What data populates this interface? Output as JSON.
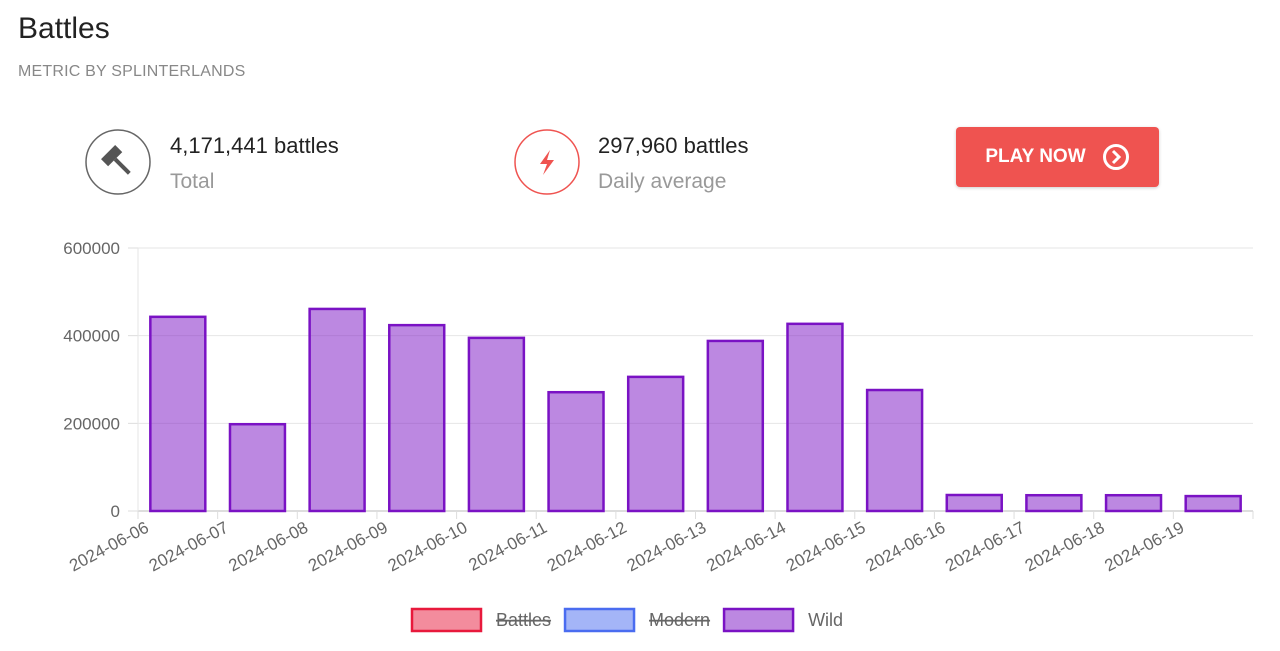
{
  "header": {
    "title": "Battles",
    "subtitle": "METRIC BY SPLINTERLANDS",
    "stats": [
      {
        "value": "4,171,441 battles",
        "label": "Total"
      },
      {
        "value": "297,960 battles",
        "label": "Daily average"
      }
    ],
    "button": "PLAY NOW"
  },
  "chart_data": {
    "type": "bar",
    "categories": [
      "2024-06-06",
      "2024-06-07",
      "2024-06-08",
      "2024-06-09",
      "2024-06-10",
      "2024-06-11",
      "2024-06-12",
      "2024-06-13",
      "2024-06-14",
      "2024-06-15",
      "2024-06-16",
      "2024-06-17",
      "2024-06-18",
      "2024-06-19"
    ],
    "series": [
      {
        "name": "Battles",
        "color": "#e8193c",
        "hidden": true
      },
      {
        "name": "Modern",
        "color": "#4a6cf0",
        "hidden": true
      },
      {
        "name": "Wild",
        "color": "#7a12c4",
        "values": [
          443000,
          198000,
          461000,
          424000,
          395000,
          271000,
          306000,
          388000,
          427000,
          276000,
          36500,
          36000,
          36000,
          34000
        ]
      }
    ],
    "ylim": [
      0,
      600000
    ],
    "yticks": [
      0,
      200000,
      400000,
      600000
    ],
    "grid": true,
    "legend": "bottom"
  }
}
